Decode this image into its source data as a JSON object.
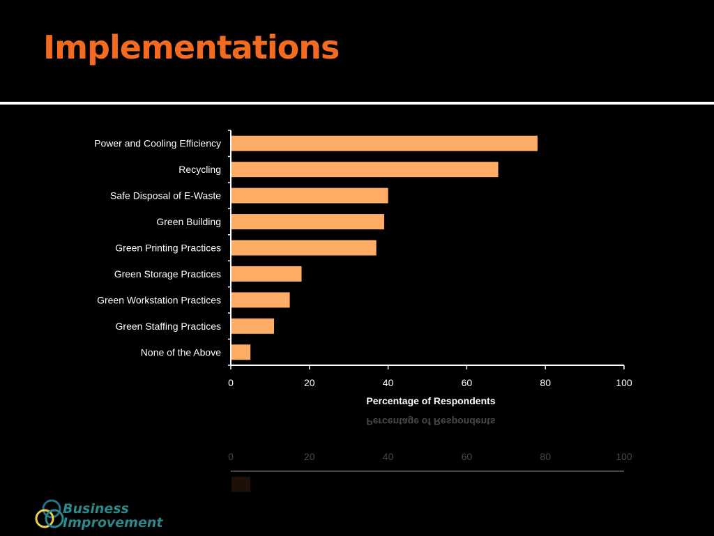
{
  "slide": {
    "title": "Implementations"
  },
  "logo": {
    "line1": "Business",
    "line2": "Improvement"
  },
  "colors": {
    "title": "#f26b21",
    "bar": "#ffad66",
    "background": "#000000",
    "text": "#ffffff",
    "logo_text": "#2a8a8a"
  },
  "chart_data": {
    "type": "bar",
    "orientation": "horizontal",
    "categories": [
      "Power and Cooling Efficiency",
      "Recycling",
      "Safe Disposal of E-Waste",
      "Green Building",
      "Green Printing Practices",
      "Green Storage Practices",
      "Green Workstation Practices",
      "Green Staffing Practices",
      "None of the Above"
    ],
    "values": [
      78,
      68,
      40,
      39,
      37,
      18,
      15,
      11,
      5
    ],
    "xlabel": "Percentage of Respondents",
    "ylabel": "",
    "xlim": [
      0,
      100
    ],
    "xticks": [
      "0",
      "20",
      "40",
      "60",
      "80",
      "100"
    ],
    "grid": false,
    "legend": "none"
  }
}
